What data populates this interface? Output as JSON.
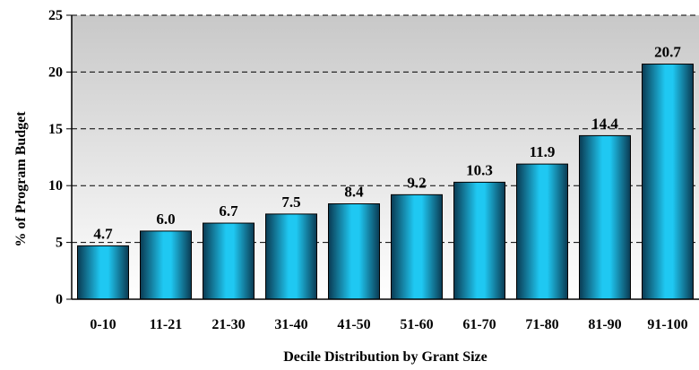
{
  "chart_data": {
    "type": "bar",
    "title": "",
    "xlabel": "Decile Distribution by Grant Size",
    "ylabel": "% of Program Budget",
    "categories": [
      "0-10",
      "11-21",
      "21-30",
      "31-40",
      "41-50",
      "51-60",
      "61-70",
      "71-80",
      "81-90",
      "91-100"
    ],
    "values": [
      4.7,
      6.0,
      6.7,
      7.5,
      8.4,
      9.2,
      10.3,
      11.9,
      14.4,
      20.7
    ],
    "value_labels": [
      "4.7",
      "6.0",
      "6.7",
      "7.5",
      "8.4",
      "9.2",
      "10.3",
      "11.9",
      "14.4",
      "20.7"
    ],
    "ylim": [
      0,
      25
    ],
    "yticks": [
      0,
      5,
      10,
      15,
      20,
      25
    ],
    "grid": "horizontal-dashed",
    "legend": "none",
    "colors": {
      "bar_center": "#1fc8f2",
      "bar_edge": "#0a3a52",
      "plot_bg_top": "#c8c8c8",
      "plot_bg_bottom": "#ffffff"
    }
  }
}
